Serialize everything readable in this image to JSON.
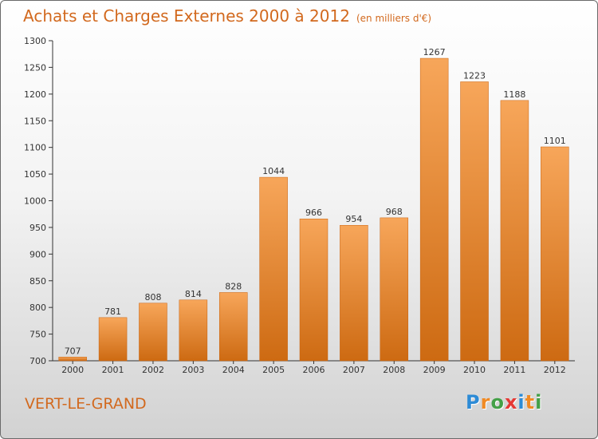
{
  "header": {
    "title": "Achats et Charges Externes 2000 à 2012",
    "subtitle": "(en milliers d'€)"
  },
  "footer": {
    "commune": "VERT-LE-GRAND"
  },
  "logo": {
    "letters": [
      "P",
      "r",
      "o",
      "x",
      "i",
      "t",
      "i"
    ],
    "colors": [
      "#2d8bd6",
      "#f08a24",
      "#43a047",
      "#e53935",
      "#2d8bd6",
      "#f08a24",
      "#43a047"
    ]
  },
  "colors": {
    "bar_light": "#f7a65a",
    "bar_dark": "#cd6a12",
    "accent": "#d2691e",
    "axis": "#333333"
  },
  "chart_data": {
    "type": "bar",
    "title": "Achats et Charges Externes 2000 à 2012",
    "subtitle": "(en milliers d'€)",
    "categories": [
      "2000",
      "2001",
      "2002",
      "2003",
      "2004",
      "2005",
      "2006",
      "2007",
      "2008",
      "2009",
      "2010",
      "2011",
      "2012"
    ],
    "values": [
      707,
      781,
      808,
      814,
      828,
      1044,
      966,
      954,
      968,
      1267,
      1223,
      1188,
      1101
    ],
    "ylim": [
      700,
      1300
    ],
    "yticks": [
      700,
      750,
      800,
      850,
      900,
      950,
      1000,
      1050,
      1100,
      1150,
      1200,
      1250,
      1300
    ],
    "xlabel": "",
    "ylabel": "",
    "grid": false,
    "legend": "none"
  }
}
